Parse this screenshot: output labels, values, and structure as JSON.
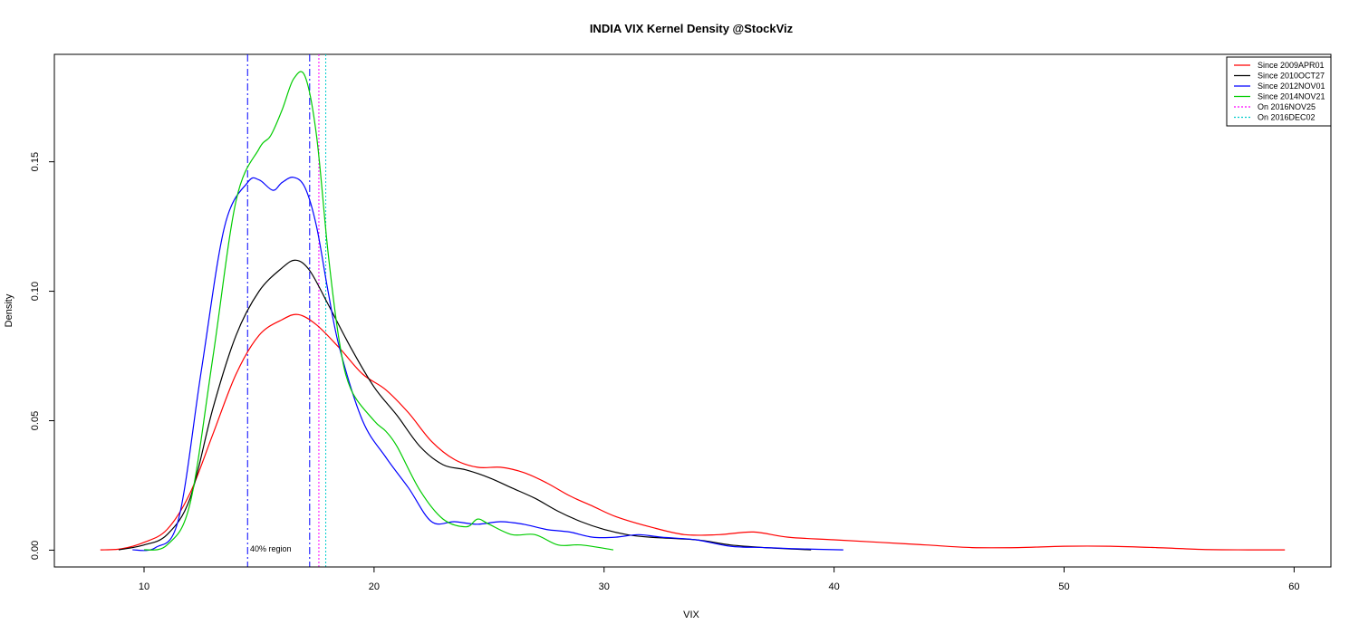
{
  "chart_data": {
    "type": "line",
    "title": "INDIA VIX Kernel Density @StockViz",
    "xlabel": "VIX",
    "ylabel": "Density",
    "xlim": [
      6.1,
      61.6
    ],
    "ylim": [
      -0.0065,
      0.1915
    ],
    "x_ticks": [
      10,
      20,
      30,
      40,
      50,
      60
    ],
    "y_ticks": [
      0.0,
      0.05,
      0.1,
      0.15
    ],
    "x_tick_labels": [
      "10",
      "20",
      "30",
      "40",
      "50",
      "60"
    ],
    "y_tick_labels": [
      "0.00",
      "0.05",
      "0.10",
      "0.15"
    ],
    "grid": false,
    "legend_position": "top-right",
    "series": [
      {
        "name": "Since 2009APR01",
        "color": "#ff0000",
        "x": [
          8.1,
          9,
          10,
          11,
          12,
          13,
          14,
          15,
          16,
          16.7,
          17.5,
          18.5,
          19.5,
          20.5,
          21.5,
          22.5,
          23.5,
          24.5,
          25.5,
          26.5,
          27.5,
          28.5,
          29.5,
          30.5,
          32,
          33.5,
          35,
          36.5,
          38,
          40,
          42,
          44,
          46,
          48,
          50,
          52,
          54,
          56,
          58,
          59.6
        ],
        "y": [
          0.0001,
          0.0005,
          0.003,
          0.008,
          0.022,
          0.045,
          0.068,
          0.083,
          0.089,
          0.091,
          0.087,
          0.078,
          0.068,
          0.062,
          0.053,
          0.042,
          0.035,
          0.032,
          0.032,
          0.03,
          0.026,
          0.021,
          0.017,
          0.013,
          0.009,
          0.006,
          0.006,
          0.007,
          0.005,
          0.004,
          0.003,
          0.002,
          0.001,
          0.001,
          0.0015,
          0.0015,
          0.001,
          0.0003,
          0.0001,
          0.0001
        ]
      },
      {
        "name": "Since 2010OCT27",
        "color": "#000000",
        "x": [
          8.9,
          10,
          11,
          12,
          13,
          14,
          15,
          16,
          16.6,
          17.2,
          18,
          19,
          20,
          21,
          22,
          23,
          24,
          25,
          26,
          27,
          28,
          29,
          30,
          31,
          32,
          34,
          35.5,
          37,
          39
        ],
        "y": [
          0.0001,
          0.002,
          0.006,
          0.02,
          0.055,
          0.083,
          0.1,
          0.109,
          0.112,
          0.108,
          0.095,
          0.078,
          0.063,
          0.052,
          0.04,
          0.033,
          0.031,
          0.028,
          0.024,
          0.02,
          0.015,
          0.011,
          0.008,
          0.006,
          0.005,
          0.004,
          0.002,
          0.001,
          0.0001
        ]
      },
      {
        "name": "Since 2012NOV01",
        "color": "#0000ff",
        "x": [
          9.5,
          10.5,
          11.5,
          12.5,
          13.5,
          14.5,
          15,
          15.6,
          16,
          16.5,
          17,
          17.5,
          18,
          18.5,
          19.5,
          20.5,
          21.5,
          22.5,
          23.5,
          24.5,
          25.5,
          26.5,
          27.5,
          28.5,
          29.5,
          30.5,
          31.5,
          32.5,
          34,
          35.5,
          37,
          38.5,
          40.4
        ],
        "y": [
          0.0001,
          0.001,
          0.012,
          0.07,
          0.125,
          0.142,
          0.143,
          0.139,
          0.142,
          0.144,
          0.14,
          0.125,
          0.1,
          0.078,
          0.05,
          0.036,
          0.024,
          0.011,
          0.011,
          0.01,
          0.011,
          0.01,
          0.008,
          0.007,
          0.005,
          0.005,
          0.006,
          0.005,
          0.004,
          0.0015,
          0.001,
          0.0005,
          0.0001
        ]
      },
      {
        "name": "Since 2014NOV21",
        "color": "#00cc00",
        "x": [
          10,
          11,
          12,
          13,
          14,
          15,
          15.5,
          16,
          16.5,
          17,
          17.5,
          18,
          18.5,
          19,
          20,
          20.5,
          21,
          22,
          23,
          24,
          24.5,
          25,
          26,
          27,
          28,
          29,
          30.4
        ],
        "y": [
          0.0001,
          0.002,
          0.018,
          0.075,
          0.135,
          0.155,
          0.16,
          0.17,
          0.182,
          0.183,
          0.16,
          0.115,
          0.08,
          0.062,
          0.05,
          0.046,
          0.04,
          0.023,
          0.012,
          0.009,
          0.012,
          0.01,
          0.006,
          0.006,
          0.002,
          0.002,
          0.0001
        ]
      }
    ],
    "reference_lines": [
      {
        "name": "40% region lower",
        "x": 14.5,
        "color": "#0000ff",
        "style": "dashdot"
      },
      {
        "name": "40% region upper",
        "x": 17.2,
        "color": "#0000ff",
        "style": "dashdot"
      },
      {
        "name": "On 2016NOV25",
        "x": 17.6,
        "color": "#ff00ff",
        "style": "dotted"
      },
      {
        "name": "On 2016DEC02",
        "x": 17.9,
        "color": "#00cccc",
        "style": "dotted"
      }
    ],
    "annotation": {
      "text": "40% region",
      "x": 14.6,
      "y": 0.0
    }
  },
  "legend": {
    "items": [
      {
        "label": "Since 2009APR01",
        "color": "#ff0000",
        "style": "solid"
      },
      {
        "label": "Since 2010OCT27",
        "color": "#000000",
        "style": "solid"
      },
      {
        "label": "Since 2012NOV01",
        "color": "#0000ff",
        "style": "solid"
      },
      {
        "label": "Since 2014NOV21",
        "color": "#00cc00",
        "style": "solid"
      },
      {
        "label": "On 2016NOV25",
        "color": "#ff00ff",
        "style": "dotted"
      },
      {
        "label": "On 2016DEC02",
        "color": "#00cccc",
        "style": "dotted"
      }
    ]
  }
}
